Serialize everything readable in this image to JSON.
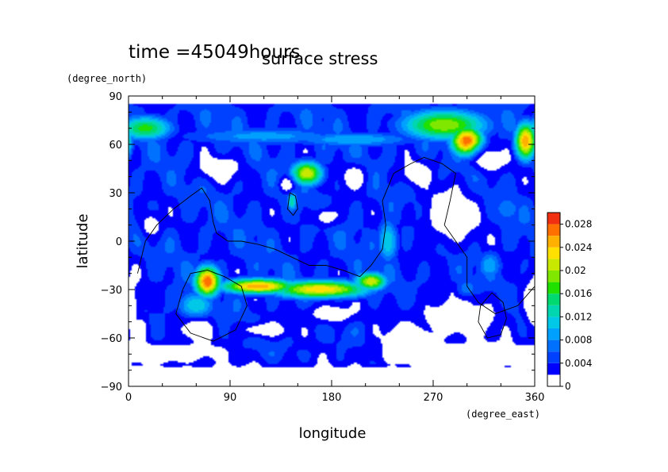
{
  "chart_data": {
    "type": "heatmap",
    "title": "time =45049hours",
    "subtitle": "surface stress",
    "xlabel": "longitude",
    "ylabel": "latitude",
    "x_unit": "(degree_east)",
    "y_unit": "(degree_north)",
    "xlim": [
      0,
      360
    ],
    "ylim": [
      -90,
      90
    ],
    "x_ticks": [
      "0",
      "90",
      "180",
      "270",
      "360"
    ],
    "y_ticks": [
      "90",
      "60",
      "30",
      "0",
      "−30",
      "−60",
      "−90"
    ],
    "x_tick_values": [
      0,
      90,
      180,
      270,
      360
    ],
    "y_tick_values": [
      90,
      60,
      30,
      0,
      -30,
      -60,
      -90
    ],
    "colorbar": {
      "levels": [
        0,
        0.002,
        0.004,
        0.006,
        0.008,
        0.01,
        0.012,
        0.014,
        0.016,
        0.018,
        0.02,
        0.022,
        0.024,
        0.026,
        0.028,
        0.03
      ],
      "tick_labels": [
        "0",
        "0.004",
        "0.008",
        "0.012",
        "0.016",
        "0.02",
        "0.024",
        "0.028"
      ],
      "tick_values": [
        0,
        0.004,
        0.008,
        0.012,
        0.016,
        0.02,
        0.024,
        0.028
      ],
      "colors": [
        "#ffffff",
        "#0000ff",
        "#0040ff",
        "#0070ff",
        "#00a0ff",
        "#00c8e6",
        "#00d6b0",
        "#00d870",
        "#20e000",
        "#80e800",
        "#c8e800",
        "#ffe000",
        "#ffb000",
        "#ff7000",
        "#f03010"
      ]
    },
    "fields": {
      "background_value": 0.0045,
      "blobs": [
        {
          "lon": 15,
          "lat": 70,
          "rx": 25,
          "ry": 8,
          "value": 0.017
        },
        {
          "lon": 120,
          "lat": 65,
          "rx": 80,
          "ry": 6,
          "value": 0.009
        },
        {
          "lon": 200,
          "lat": 63,
          "rx": 60,
          "ry": 5,
          "value": 0.01
        },
        {
          "lon": 280,
          "lat": 72,
          "rx": 40,
          "ry": 10,
          "value": 0.02
        },
        {
          "lon": 300,
          "lat": 62,
          "rx": 15,
          "ry": 10,
          "value": 0.028
        },
        {
          "lon": 352,
          "lat": 62,
          "rx": 10,
          "ry": 12,
          "value": 0.026
        },
        {
          "lon": 158,
          "lat": 42,
          "rx": 15,
          "ry": 8,
          "value": 0.022
        },
        {
          "lon": 145,
          "lat": 25,
          "rx": 5,
          "ry": 7,
          "value": 0.014
        },
        {
          "lon": 70,
          "lat": -25,
          "rx": 12,
          "ry": 10,
          "value": 0.028
        },
        {
          "lon": 115,
          "lat": -28,
          "rx": 35,
          "ry": 5,
          "value": 0.026
        },
        {
          "lon": 170,
          "lat": -30,
          "rx": 45,
          "ry": 6,
          "value": 0.024
        },
        {
          "lon": 215,
          "lat": -25,
          "rx": 15,
          "ry": 6,
          "value": 0.022
        },
        {
          "lon": 60,
          "lat": -40,
          "rx": 18,
          "ry": 10,
          "value": 0.012
        },
        {
          "lon": 230,
          "lat": 0,
          "rx": 10,
          "ry": 15,
          "value": 0.012
        },
        {
          "lon": 320,
          "lat": -15,
          "rx": 12,
          "ry": 10,
          "value": 0.01
        },
        {
          "lon": 335,
          "lat": 20,
          "rx": 15,
          "ry": 10,
          "value": 0.008
        },
        {
          "lon": 300,
          "lat": -30,
          "rx": 12,
          "ry": 8,
          "value": 0.009
        }
      ],
      "calm_zones": [
        {
          "lon": 80,
          "lat": 45,
          "rx": 22,
          "ry": 8
        },
        {
          "lon": 140,
          "lat": 35,
          "rx": 7,
          "ry": 5
        },
        {
          "lon": 175,
          "lat": 15,
          "rx": 12,
          "ry": 6
        },
        {
          "lon": 200,
          "lat": 40,
          "rx": 12,
          "ry": 8
        },
        {
          "lon": 285,
          "lat": 15,
          "rx": 28,
          "ry": 20
        },
        {
          "lon": 255,
          "lat": 42,
          "rx": 15,
          "ry": 8
        },
        {
          "lon": 320,
          "lat": 50,
          "rx": 15,
          "ry": 8
        },
        {
          "lon": 290,
          "lat": -48,
          "rx": 45,
          "ry": 15
        },
        {
          "lon": 250,
          "lat": -60,
          "rx": 30,
          "ry": 12
        },
        {
          "lon": 60,
          "lat": -55,
          "rx": 18,
          "ry": 7
        },
        {
          "lon": 10,
          "lat": -55,
          "rx": 10,
          "ry": 10
        },
        {
          "lon": 120,
          "lat": -55,
          "rx": 25,
          "ry": 5
        },
        {
          "lon": 180,
          "lat": -45,
          "rx": 25,
          "ry": 7
        },
        {
          "lon": 20,
          "lat": 10,
          "rx": 10,
          "ry": 8
        },
        {
          "lon": 360,
          "lat": -40,
          "rx": 12,
          "ry": 20
        }
      ],
      "dead_zones": [
        {
          "lon": 0,
          "lat": -85,
          "rx": 400,
          "ry": 10
        },
        {
          "lon": 30,
          "lat": -70,
          "rx": 60,
          "ry": 8
        },
        {
          "lon": 300,
          "lat": -72,
          "rx": 90,
          "ry": 10
        }
      ],
      "cap_north_lat": 85,
      "cap_south_lat": -78
    },
    "contour_lines": [
      {
        "name": "continent-a",
        "points": [
          [
            8,
            -20
          ],
          [
            15,
            0
          ],
          [
            25,
            10
          ],
          [
            40,
            20
          ],
          [
            55,
            28
          ],
          [
            65,
            33
          ],
          [
            72,
            25
          ],
          [
            75,
            12
          ],
          [
            78,
            5
          ],
          [
            88,
            0
          ],
          [
            100,
            0
          ],
          [
            115,
            -2
          ],
          [
            130,
            -5
          ],
          [
            145,
            -10
          ],
          [
            160,
            -15
          ],
          [
            175,
            -15
          ],
          [
            190,
            -18
          ],
          [
            205,
            -22
          ],
          [
            215,
            -15
          ],
          [
            225,
            -5
          ],
          [
            228,
            10
          ],
          [
            225,
            25
          ],
          [
            235,
            42
          ],
          [
            250,
            48
          ],
          [
            262,
            52
          ],
          [
            278,
            48
          ],
          [
            290,
            42
          ],
          [
            285,
            25
          ],
          [
            280,
            10
          ],
          [
            290,
            0
          ],
          [
            300,
            -10
          ],
          [
            300,
            -28
          ],
          [
            310,
            -38
          ],
          [
            325,
            -45
          ],
          [
            345,
            -40
          ],
          [
            360,
            -28
          ]
        ]
      },
      {
        "name": "continent-b",
        "points": [
          [
            55,
            -20
          ],
          [
            70,
            -18
          ],
          [
            85,
            -22
          ],
          [
            100,
            -28
          ],
          [
            105,
            -40
          ],
          [
            95,
            -55
          ],
          [
            75,
            -62
          ],
          [
            55,
            -57
          ],
          [
            42,
            -45
          ],
          [
            48,
            -30
          ],
          [
            55,
            -20
          ]
        ]
      },
      {
        "name": "continent-c",
        "points": [
          [
            312,
            -40
          ],
          [
            322,
            -32
          ],
          [
            332,
            -38
          ],
          [
            335,
            -48
          ],
          [
            330,
            -58
          ],
          [
            318,
            -60
          ],
          [
            310,
            -50
          ],
          [
            312,
            -40
          ]
        ]
      },
      {
        "name": "continent-d",
        "points": [
          [
            143,
            30
          ],
          [
            148,
            28
          ],
          [
            150,
            20
          ],
          [
            146,
            16
          ],
          [
            141,
            20
          ],
          [
            143,
            30
          ]
        ]
      }
    ]
  }
}
